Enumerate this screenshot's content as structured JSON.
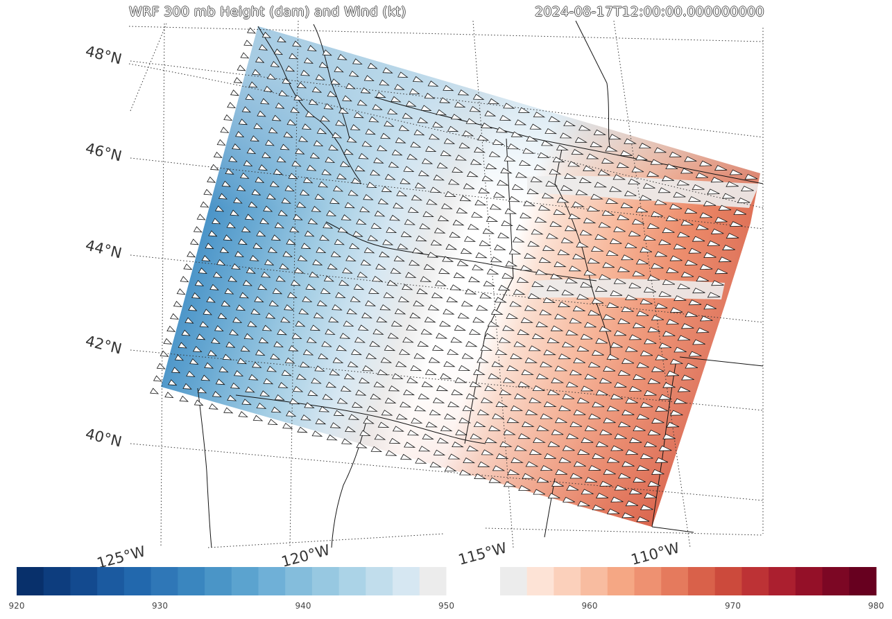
{
  "title": "WRF 300 mb Height (dam) and Wind (kt)",
  "valid_time": "2024-08-17T12:00:00.000000000",
  "lat_labels": [
    "48°N",
    "46°N",
    "44°N",
    "42°N",
    "40°N"
  ],
  "lon_labels": [
    "125°W",
    "120°W",
    "115°W",
    "110°W"
  ],
  "colorbar": {
    "min": 920,
    "max": 980,
    "ticks": [
      "920",
      "930",
      "940",
      "950",
      "960",
      "970",
      "980"
    ],
    "colors": [
      "#08306b",
      "#0d3d7e",
      "#134a8f",
      "#1b5aa0",
      "#2268ad",
      "#2f77b7",
      "#3a86bf",
      "#4a95c7",
      "#5ba3cf",
      "#6fb0d7",
      "#84bddc",
      "#97c8e1",
      "#abd3e7",
      "#c1ddec",
      "#d6e7f2",
      "#ececec",
      "#ffffff",
      "#ffffff",
      "#ececec",
      "#fde3d6",
      "#fbd0bb",
      "#f8bca0",
      "#f5a784",
      "#ee9171",
      "#e57a5d",
      "#d9614a",
      "#cc4a3c",
      "#bd3235",
      "#ab1f2f",
      "#941028",
      "#7c0724",
      "#67001f"
    ]
  },
  "chart_data": {
    "type": "heatmap",
    "title": "WRF 300 mb Height (dam) and Wind (kt)",
    "valid_time": "2024-08-17T12:00:00.000000000",
    "variable": "300 mb geopotential height (dam) with wind barbs (kt)",
    "colorbar_range": [
      920,
      980
    ],
    "colorbar_ticks": [
      920,
      930,
      940,
      950,
      960,
      970,
      980
    ],
    "lat_gridlines": [
      40,
      42,
      44,
      46,
      48
    ],
    "lon_gridlines": [
      -125,
      -120,
      -115,
      -110
    ],
    "height_field": {
      "northwest": 940,
      "west": 931,
      "southwest": 932,
      "north_center": 944,
      "center": 950,
      "east_center": 951,
      "southeast": 967,
      "south_center": 960
    }
  }
}
